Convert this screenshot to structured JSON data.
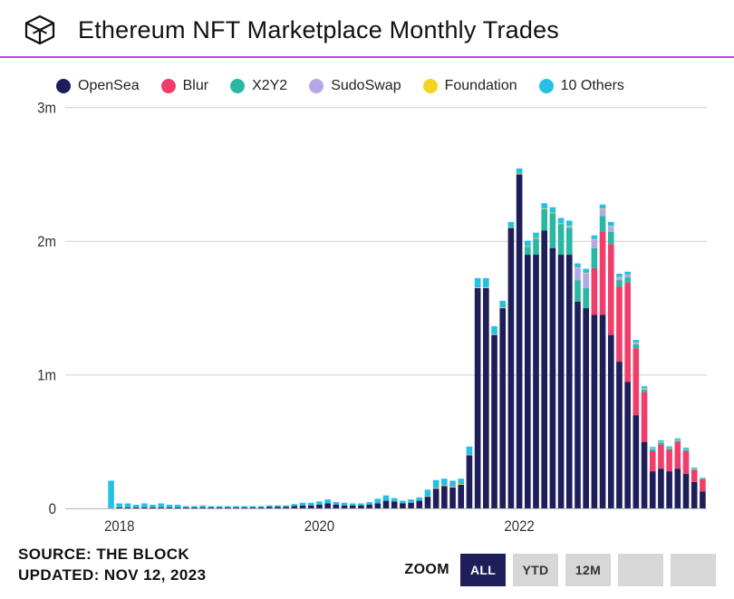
{
  "header": {
    "title": "Ethereum NFT Marketplace Monthly Trades"
  },
  "legend": [
    {
      "label": "OpenSea",
      "color": "#1e1e5a"
    },
    {
      "label": "Blur",
      "color": "#ef3e6b"
    },
    {
      "label": "X2Y2",
      "color": "#2ab8a4"
    },
    {
      "label": "SudoSwap",
      "color": "#b6a8e6"
    },
    {
      "label": "Foundation",
      "color": "#f4d21f"
    },
    {
      "label": "10 Others",
      "color": "#26c0e6"
    }
  ],
  "chart": {
    "type": "stacked-bar",
    "background_color": "#ffffff",
    "grid_color": "#d5d5d5",
    "axis_color": "#333333",
    "ylim": [
      0,
      3000000
    ],
    "yticks": [
      {
        "v": 0,
        "label": "0"
      },
      {
        "v": 1000000,
        "label": "1m"
      },
      {
        "v": 2000000,
        "label": "2m"
      },
      {
        "v": 3000000,
        "label": "3m"
      }
    ],
    "x_start_year": 2017,
    "x_start_month": 7,
    "x_end_year": 2023,
    "x_end_month": 11,
    "xticks": [
      "2018",
      "2020",
      "2022"
    ],
    "series_keys": [
      "opensea",
      "blur",
      "x2y2",
      "sudoswap",
      "foundation",
      "others"
    ],
    "data": [
      {
        "y": 2017,
        "m": 7,
        "opensea": 0,
        "blur": 0,
        "x2y2": 0,
        "sudoswap": 0,
        "foundation": 0,
        "others": 0
      },
      {
        "y": 2017,
        "m": 8,
        "opensea": 0,
        "blur": 0,
        "x2y2": 0,
        "sudoswap": 0,
        "foundation": 0,
        "others": 0
      },
      {
        "y": 2017,
        "m": 9,
        "opensea": 0,
        "blur": 0,
        "x2y2": 0,
        "sudoswap": 0,
        "foundation": 0,
        "others": 0
      },
      {
        "y": 2017,
        "m": 10,
        "opensea": 0,
        "blur": 0,
        "x2y2": 0,
        "sudoswap": 0,
        "foundation": 0,
        "others": 0
      },
      {
        "y": 2017,
        "m": 11,
        "opensea": 0,
        "blur": 0,
        "x2y2": 0,
        "sudoswap": 0,
        "foundation": 0,
        "others": 0
      },
      {
        "y": 2017,
        "m": 12,
        "opensea": 0,
        "blur": 0,
        "x2y2": 0,
        "sudoswap": 0,
        "foundation": 0,
        "others": 210000
      },
      {
        "y": 2018,
        "m": 1,
        "opensea": 10000,
        "blur": 0,
        "x2y2": 0,
        "sudoswap": 0,
        "foundation": 0,
        "others": 30000
      },
      {
        "y": 2018,
        "m": 2,
        "opensea": 10000,
        "blur": 0,
        "x2y2": 0,
        "sudoswap": 0,
        "foundation": 0,
        "others": 30000
      },
      {
        "y": 2018,
        "m": 3,
        "opensea": 10000,
        "blur": 0,
        "x2y2": 0,
        "sudoswap": 0,
        "foundation": 0,
        "others": 20000
      },
      {
        "y": 2018,
        "m": 4,
        "opensea": 10000,
        "blur": 0,
        "x2y2": 0,
        "sudoswap": 0,
        "foundation": 0,
        "others": 30000
      },
      {
        "y": 2018,
        "m": 5,
        "opensea": 10000,
        "blur": 0,
        "x2y2": 0,
        "sudoswap": 0,
        "foundation": 0,
        "others": 20000
      },
      {
        "y": 2018,
        "m": 6,
        "opensea": 10000,
        "blur": 0,
        "x2y2": 0,
        "sudoswap": 0,
        "foundation": 0,
        "others": 30000
      },
      {
        "y": 2018,
        "m": 7,
        "opensea": 10000,
        "blur": 0,
        "x2y2": 0,
        "sudoswap": 0,
        "foundation": 0,
        "others": 20000
      },
      {
        "y": 2018,
        "m": 8,
        "opensea": 10000,
        "blur": 0,
        "x2y2": 0,
        "sudoswap": 0,
        "foundation": 0,
        "others": 20000
      },
      {
        "y": 2018,
        "m": 9,
        "opensea": 10000,
        "blur": 0,
        "x2y2": 0,
        "sudoswap": 0,
        "foundation": 0,
        "others": 10000
      },
      {
        "y": 2018,
        "m": 10,
        "opensea": 10000,
        "blur": 0,
        "x2y2": 0,
        "sudoswap": 0,
        "foundation": 0,
        "others": 10000
      },
      {
        "y": 2018,
        "m": 11,
        "opensea": 10000,
        "blur": 0,
        "x2y2": 0,
        "sudoswap": 0,
        "foundation": 0,
        "others": 15000
      },
      {
        "y": 2018,
        "m": 12,
        "opensea": 10000,
        "blur": 0,
        "x2y2": 0,
        "sudoswap": 0,
        "foundation": 0,
        "others": 10000
      },
      {
        "y": 2019,
        "m": 1,
        "opensea": 10000,
        "blur": 0,
        "x2y2": 0,
        "sudoswap": 0,
        "foundation": 0,
        "others": 10000
      },
      {
        "y": 2019,
        "m": 2,
        "opensea": 10000,
        "blur": 0,
        "x2y2": 0,
        "sudoswap": 0,
        "foundation": 0,
        "others": 10000
      },
      {
        "y": 2019,
        "m": 3,
        "opensea": 10000,
        "blur": 0,
        "x2y2": 0,
        "sudoswap": 0,
        "foundation": 0,
        "others": 10000
      },
      {
        "y": 2019,
        "m": 4,
        "opensea": 10000,
        "blur": 0,
        "x2y2": 0,
        "sudoswap": 0,
        "foundation": 0,
        "others": 10000
      },
      {
        "y": 2019,
        "m": 5,
        "opensea": 10000,
        "blur": 0,
        "x2y2": 0,
        "sudoswap": 0,
        "foundation": 0,
        "others": 10000
      },
      {
        "y": 2019,
        "m": 6,
        "opensea": 10000,
        "blur": 0,
        "x2y2": 0,
        "sudoswap": 0,
        "foundation": 0,
        "others": 10000
      },
      {
        "y": 2019,
        "m": 7,
        "opensea": 15000,
        "blur": 0,
        "x2y2": 0,
        "sudoswap": 0,
        "foundation": 0,
        "others": 10000
      },
      {
        "y": 2019,
        "m": 8,
        "opensea": 15000,
        "blur": 0,
        "x2y2": 0,
        "sudoswap": 0,
        "foundation": 0,
        "others": 10000
      },
      {
        "y": 2019,
        "m": 9,
        "opensea": 15000,
        "blur": 0,
        "x2y2": 0,
        "sudoswap": 0,
        "foundation": 0,
        "others": 10000
      },
      {
        "y": 2019,
        "m": 10,
        "opensea": 20000,
        "blur": 0,
        "x2y2": 0,
        "sudoswap": 0,
        "foundation": 0,
        "others": 15000
      },
      {
        "y": 2019,
        "m": 11,
        "opensea": 25000,
        "blur": 0,
        "x2y2": 0,
        "sudoswap": 0,
        "foundation": 0,
        "others": 20000
      },
      {
        "y": 2019,
        "m": 12,
        "opensea": 25000,
        "blur": 0,
        "x2y2": 0,
        "sudoswap": 0,
        "foundation": 0,
        "others": 20000
      },
      {
        "y": 2020,
        "m": 1,
        "opensea": 30000,
        "blur": 0,
        "x2y2": 0,
        "sudoswap": 0,
        "foundation": 0,
        "others": 25000
      },
      {
        "y": 2020,
        "m": 2,
        "opensea": 40000,
        "blur": 0,
        "x2y2": 0,
        "sudoswap": 0,
        "foundation": 0,
        "others": 30000
      },
      {
        "y": 2020,
        "m": 3,
        "opensea": 30000,
        "blur": 0,
        "x2y2": 0,
        "sudoswap": 0,
        "foundation": 0,
        "others": 20000
      },
      {
        "y": 2020,
        "m": 4,
        "opensea": 25000,
        "blur": 0,
        "x2y2": 0,
        "sudoswap": 0,
        "foundation": 0,
        "others": 20000
      },
      {
        "y": 2020,
        "m": 5,
        "opensea": 25000,
        "blur": 0,
        "x2y2": 0,
        "sudoswap": 0,
        "foundation": 0,
        "others": 15000
      },
      {
        "y": 2020,
        "m": 6,
        "opensea": 25000,
        "blur": 0,
        "x2y2": 0,
        "sudoswap": 0,
        "foundation": 0,
        "others": 15000
      },
      {
        "y": 2020,
        "m": 7,
        "opensea": 30000,
        "blur": 0,
        "x2y2": 0,
        "sudoswap": 0,
        "foundation": 0,
        "others": 20000
      },
      {
        "y": 2020,
        "m": 8,
        "opensea": 40000,
        "blur": 0,
        "x2y2": 0,
        "sudoswap": 0,
        "foundation": 0,
        "others": 35000
      },
      {
        "y": 2020,
        "m": 9,
        "opensea": 60000,
        "blur": 0,
        "x2y2": 0,
        "sudoswap": 0,
        "foundation": 0,
        "others": 40000
      },
      {
        "y": 2020,
        "m": 10,
        "opensea": 55000,
        "blur": 0,
        "x2y2": 0,
        "sudoswap": 0,
        "foundation": 0,
        "others": 25000
      },
      {
        "y": 2020,
        "m": 11,
        "opensea": 40000,
        "blur": 0,
        "x2y2": 0,
        "sudoswap": 0,
        "foundation": 0,
        "others": 20000
      },
      {
        "y": 2020,
        "m": 12,
        "opensea": 45000,
        "blur": 0,
        "x2y2": 0,
        "sudoswap": 0,
        "foundation": 0,
        "others": 25000
      },
      {
        "y": 2021,
        "m": 1,
        "opensea": 60000,
        "blur": 0,
        "x2y2": 0,
        "sudoswap": 0,
        "foundation": 0,
        "others": 25000
      },
      {
        "y": 2021,
        "m": 2,
        "opensea": 90000,
        "blur": 0,
        "x2y2": 0,
        "sudoswap": 0,
        "foundation": 3000,
        "others": 50000
      },
      {
        "y": 2021,
        "m": 3,
        "opensea": 150000,
        "blur": 0,
        "x2y2": 0,
        "sudoswap": 0,
        "foundation": 5000,
        "others": 60000
      },
      {
        "y": 2021,
        "m": 4,
        "opensea": 170000,
        "blur": 0,
        "x2y2": 0,
        "sudoswap": 0,
        "foundation": 5000,
        "others": 50000
      },
      {
        "y": 2021,
        "m": 5,
        "opensea": 160000,
        "blur": 0,
        "x2y2": 0,
        "sudoswap": 0,
        "foundation": 5000,
        "others": 45000
      },
      {
        "y": 2021,
        "m": 6,
        "opensea": 180000,
        "blur": 0,
        "x2y2": 0,
        "sudoswap": 0,
        "foundation": 5000,
        "others": 40000
      },
      {
        "y": 2021,
        "m": 7,
        "opensea": 400000,
        "blur": 0,
        "x2y2": 0,
        "sudoswap": 0,
        "foundation": 5000,
        "others": 60000
      },
      {
        "y": 2021,
        "m": 8,
        "opensea": 1650000,
        "blur": 0,
        "x2y2": 0,
        "sudoswap": 0,
        "foundation": 5000,
        "others": 70000
      },
      {
        "y": 2021,
        "m": 9,
        "opensea": 1650000,
        "blur": 0,
        "x2y2": 0,
        "sudoswap": 0,
        "foundation": 5000,
        "others": 70000
      },
      {
        "y": 2021,
        "m": 10,
        "opensea": 1300000,
        "blur": 0,
        "x2y2": 0,
        "sudoswap": 0,
        "foundation": 5000,
        "others": 60000
      },
      {
        "y": 2021,
        "m": 11,
        "opensea": 1500000,
        "blur": 0,
        "x2y2": 0,
        "sudoswap": 0,
        "foundation": 5000,
        "others": 50000
      },
      {
        "y": 2021,
        "m": 12,
        "opensea": 2100000,
        "blur": 0,
        "x2y2": 0,
        "sudoswap": 0,
        "foundation": 5000,
        "others": 40000
      },
      {
        "y": 2022,
        "m": 1,
        "opensea": 2500000,
        "blur": 0,
        "x2y2": 0,
        "sudoswap": 0,
        "foundation": 5000,
        "others": 40000
      },
      {
        "y": 2022,
        "m": 2,
        "opensea": 1900000,
        "blur": 0,
        "x2y2": 60000,
        "sudoswap": 0,
        "foundation": 5000,
        "others": 40000
      },
      {
        "y": 2022,
        "m": 3,
        "opensea": 1900000,
        "blur": 0,
        "x2y2": 120000,
        "sudoswap": 0,
        "foundation": 5000,
        "others": 40000
      },
      {
        "y": 2022,
        "m": 4,
        "opensea": 2080000,
        "blur": 0,
        "x2y2": 160000,
        "sudoswap": 0,
        "foundation": 5000,
        "others": 40000
      },
      {
        "y": 2022,
        "m": 5,
        "opensea": 1950000,
        "blur": 0,
        "x2y2": 260000,
        "sudoswap": 0,
        "foundation": 5000,
        "others": 40000
      },
      {
        "y": 2022,
        "m": 6,
        "opensea": 1900000,
        "blur": 0,
        "x2y2": 230000,
        "sudoswap": 0,
        "foundation": 5000,
        "others": 40000
      },
      {
        "y": 2022,
        "m": 7,
        "opensea": 1900000,
        "blur": 0,
        "x2y2": 200000,
        "sudoswap": 10000,
        "foundation": 5000,
        "others": 40000
      },
      {
        "y": 2022,
        "m": 8,
        "opensea": 1550000,
        "blur": 0,
        "x2y2": 160000,
        "sudoswap": 90000,
        "foundation": 5000,
        "others": 30000
      },
      {
        "y": 2022,
        "m": 9,
        "opensea": 1500000,
        "blur": 0,
        "x2y2": 150000,
        "sudoswap": 110000,
        "foundation": 5000,
        "others": 30000
      },
      {
        "y": 2022,
        "m": 10,
        "opensea": 1450000,
        "blur": 350000,
        "x2y2": 150000,
        "sudoswap": 60000,
        "foundation": 5000,
        "others": 30000
      },
      {
        "y": 2022,
        "m": 11,
        "opensea": 1450000,
        "blur": 620000,
        "x2y2": 120000,
        "sudoswap": 50000,
        "foundation": 5000,
        "others": 30000
      },
      {
        "y": 2022,
        "m": 12,
        "opensea": 1300000,
        "blur": 680000,
        "x2y2": 90000,
        "sudoswap": 40000,
        "foundation": 5000,
        "others": 30000
      },
      {
        "y": 2023,
        "m": 1,
        "opensea": 1100000,
        "blur": 560000,
        "x2y2": 50000,
        "sudoswap": 20000,
        "foundation": 3000,
        "others": 25000
      },
      {
        "y": 2023,
        "m": 2,
        "opensea": 950000,
        "blur": 740000,
        "x2y2": 40000,
        "sudoswap": 15000,
        "foundation": 3000,
        "others": 25000
      },
      {
        "y": 2023,
        "m": 3,
        "opensea": 700000,
        "blur": 500000,
        "x2y2": 30000,
        "sudoswap": 10000,
        "foundation": 3000,
        "others": 20000
      },
      {
        "y": 2023,
        "m": 4,
        "opensea": 500000,
        "blur": 370000,
        "x2y2": 20000,
        "sudoswap": 8000,
        "foundation": 3000,
        "others": 15000
      },
      {
        "y": 2023,
        "m": 5,
        "opensea": 280000,
        "blur": 150000,
        "x2y2": 15000,
        "sudoswap": 5000,
        "foundation": 2000,
        "others": 10000
      },
      {
        "y": 2023,
        "m": 6,
        "opensea": 300000,
        "blur": 180000,
        "x2y2": 15000,
        "sudoswap": 5000,
        "foundation": 2000,
        "others": 10000
      },
      {
        "y": 2023,
        "m": 7,
        "opensea": 280000,
        "blur": 160000,
        "x2y2": 10000,
        "sudoswap": 5000,
        "foundation": 2000,
        "others": 10000
      },
      {
        "y": 2023,
        "m": 8,
        "opensea": 300000,
        "blur": 200000,
        "x2y2": 10000,
        "sudoswap": 5000,
        "foundation": 2000,
        "others": 10000
      },
      {
        "y": 2023,
        "m": 9,
        "opensea": 260000,
        "blur": 170000,
        "x2y2": 10000,
        "sudoswap": 5000,
        "foundation": 2000,
        "others": 10000
      },
      {
        "y": 2023,
        "m": 10,
        "opensea": 200000,
        "blur": 90000,
        "x2y2": 5000,
        "sudoswap": 3000,
        "foundation": 2000,
        "others": 8000
      },
      {
        "y": 2023,
        "m": 11,
        "opensea": 130000,
        "blur": 90000,
        "x2y2": 5000,
        "sudoswap": 2000,
        "foundation": 2000,
        "others": 5000
      }
    ]
  },
  "footer": {
    "source_label": "SOURCE:",
    "source_value": "THE BLOCK",
    "updated_label": "UPDATED:",
    "updated_value": "NOV 12, 2023",
    "zoom_label": "ZOOM",
    "buttons": [
      {
        "label": "ALL",
        "active": true
      },
      {
        "label": "YTD",
        "active": false
      },
      {
        "label": "12M",
        "active": false
      },
      {
        "label": "",
        "active": false
      },
      {
        "label": "",
        "active": false
      }
    ]
  },
  "colors": {
    "accent_underline": "#c940e6",
    "button_inactive_bg": "#d7d7d7",
    "button_active_bg": "#1e1e5a"
  }
}
